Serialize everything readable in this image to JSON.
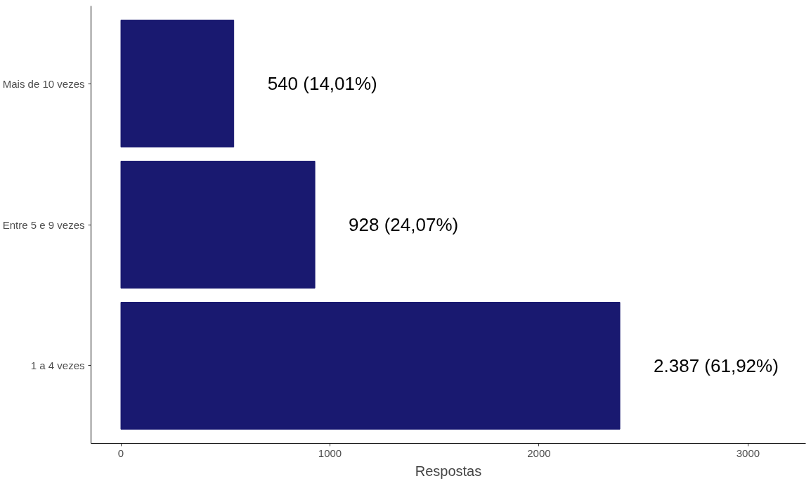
{
  "chart_data": {
    "type": "bar",
    "orientation": "horizontal",
    "xlabel": "Respostas",
    "categories": [
      "Mais de 10 vezes",
      "Entre 5 e 9 vezes",
      "1 a 4 vezes"
    ],
    "values": [
      540,
      928,
      2387
    ],
    "color": "#191970",
    "value_labels": [
      "540 (14,01%)",
      "928 (24,07%)",
      "2.387 (61,92%)"
    ],
    "xlim": [
      -143,
      3276
    ],
    "xticks": [
      0,
      1000,
      2000,
      3000
    ],
    "grid": false
  }
}
